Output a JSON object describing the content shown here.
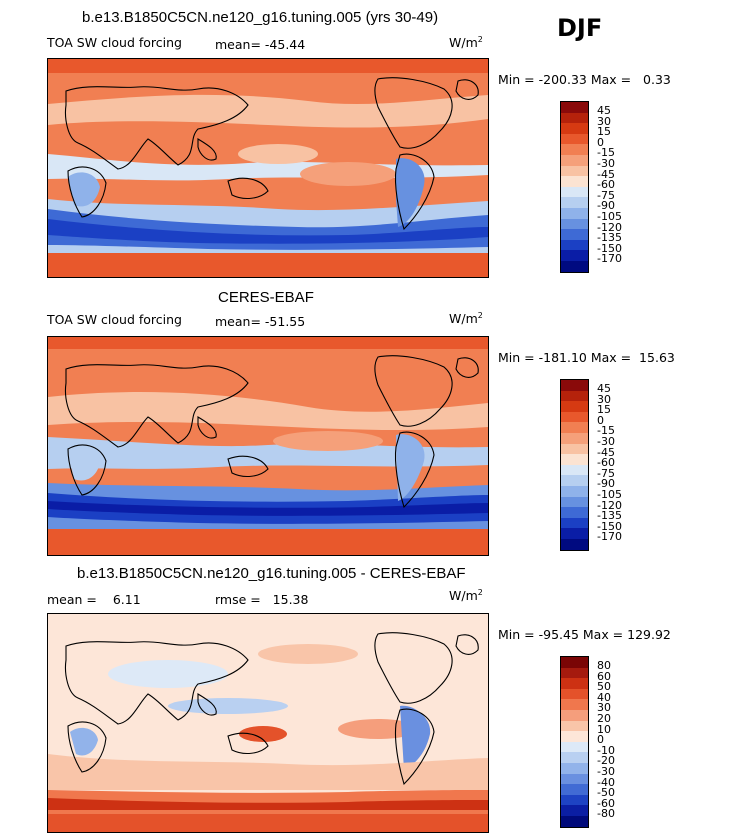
{
  "season": "DJF",
  "panel1": {
    "title": "b.e13.B1850C5CN.ne120_g16.tuning.005 (yrs 30-49)",
    "left": "TOA SW cloud forcing",
    "mean_label": "mean=",
    "mean": "-45.44",
    "units_base": "W/m",
    "units_exp": "2",
    "minmax": "Min = -200.33 Max =   0.33",
    "levels": [
      "45",
      "30",
      "15",
      "0",
      "-15",
      "-30",
      "-45",
      "-60",
      "-75",
      "-90",
      "-105",
      "-120",
      "-135",
      "-150",
      "-170"
    ]
  },
  "panel2": {
    "title": "CERES-EBAF",
    "left": "TOA SW cloud forcing",
    "mean_label": "mean=",
    "mean": "-51.55",
    "units_base": "W/m",
    "units_exp": "2",
    "minmax": "Min = -181.10 Max =  15.63",
    "levels": [
      "45",
      "30",
      "15",
      "0",
      "-15",
      "-30",
      "-45",
      "-60",
      "-75",
      "-90",
      "-105",
      "-120",
      "-135",
      "-150",
      "-170"
    ]
  },
  "panel3": {
    "title": "b.e13.B1850C5CN.ne120_g16.tuning.005 - CERES-EBAF",
    "mean_label": "mean =",
    "mean": "6.11",
    "rmse_label": "rmse =",
    "rmse": "15.38",
    "units_base": "W/m",
    "units_exp": "2",
    "minmax": "Min = -95.45 Max = 129.92",
    "levels": [
      "80",
      "60",
      "50",
      "40",
      "30",
      "20",
      "10",
      "0",
      "-10",
      "-20",
      "-30",
      "-40",
      "-50",
      "-60",
      "-80"
    ]
  },
  "colors": {
    "abs_scale": [
      "#8a0a0a",
      "#b5220b",
      "#d63a12",
      "#e8582c",
      "#f17f52",
      "#f5a07a",
      "#f8c2a3",
      "#fbe3d2",
      "#d9e7f6",
      "#b6cff0",
      "#8fb2ea",
      "#6791e0",
      "#3e6ad5",
      "#1b40c4",
      "#0a1da6",
      "#000a80"
    ],
    "diff_scale": [
      "#7a0505",
      "#a51a0e",
      "#cd3113",
      "#e4522a",
      "#f0774d",
      "#f59e7c",
      "#f9c5a9",
      "#fde6d8",
      "#dde9f7",
      "#b9d0f1",
      "#92b3ea",
      "#6a90e0",
      "#416bd4",
      "#1e43c3",
      "#0b1ea3",
      "#000a7a"
    ]
  }
}
